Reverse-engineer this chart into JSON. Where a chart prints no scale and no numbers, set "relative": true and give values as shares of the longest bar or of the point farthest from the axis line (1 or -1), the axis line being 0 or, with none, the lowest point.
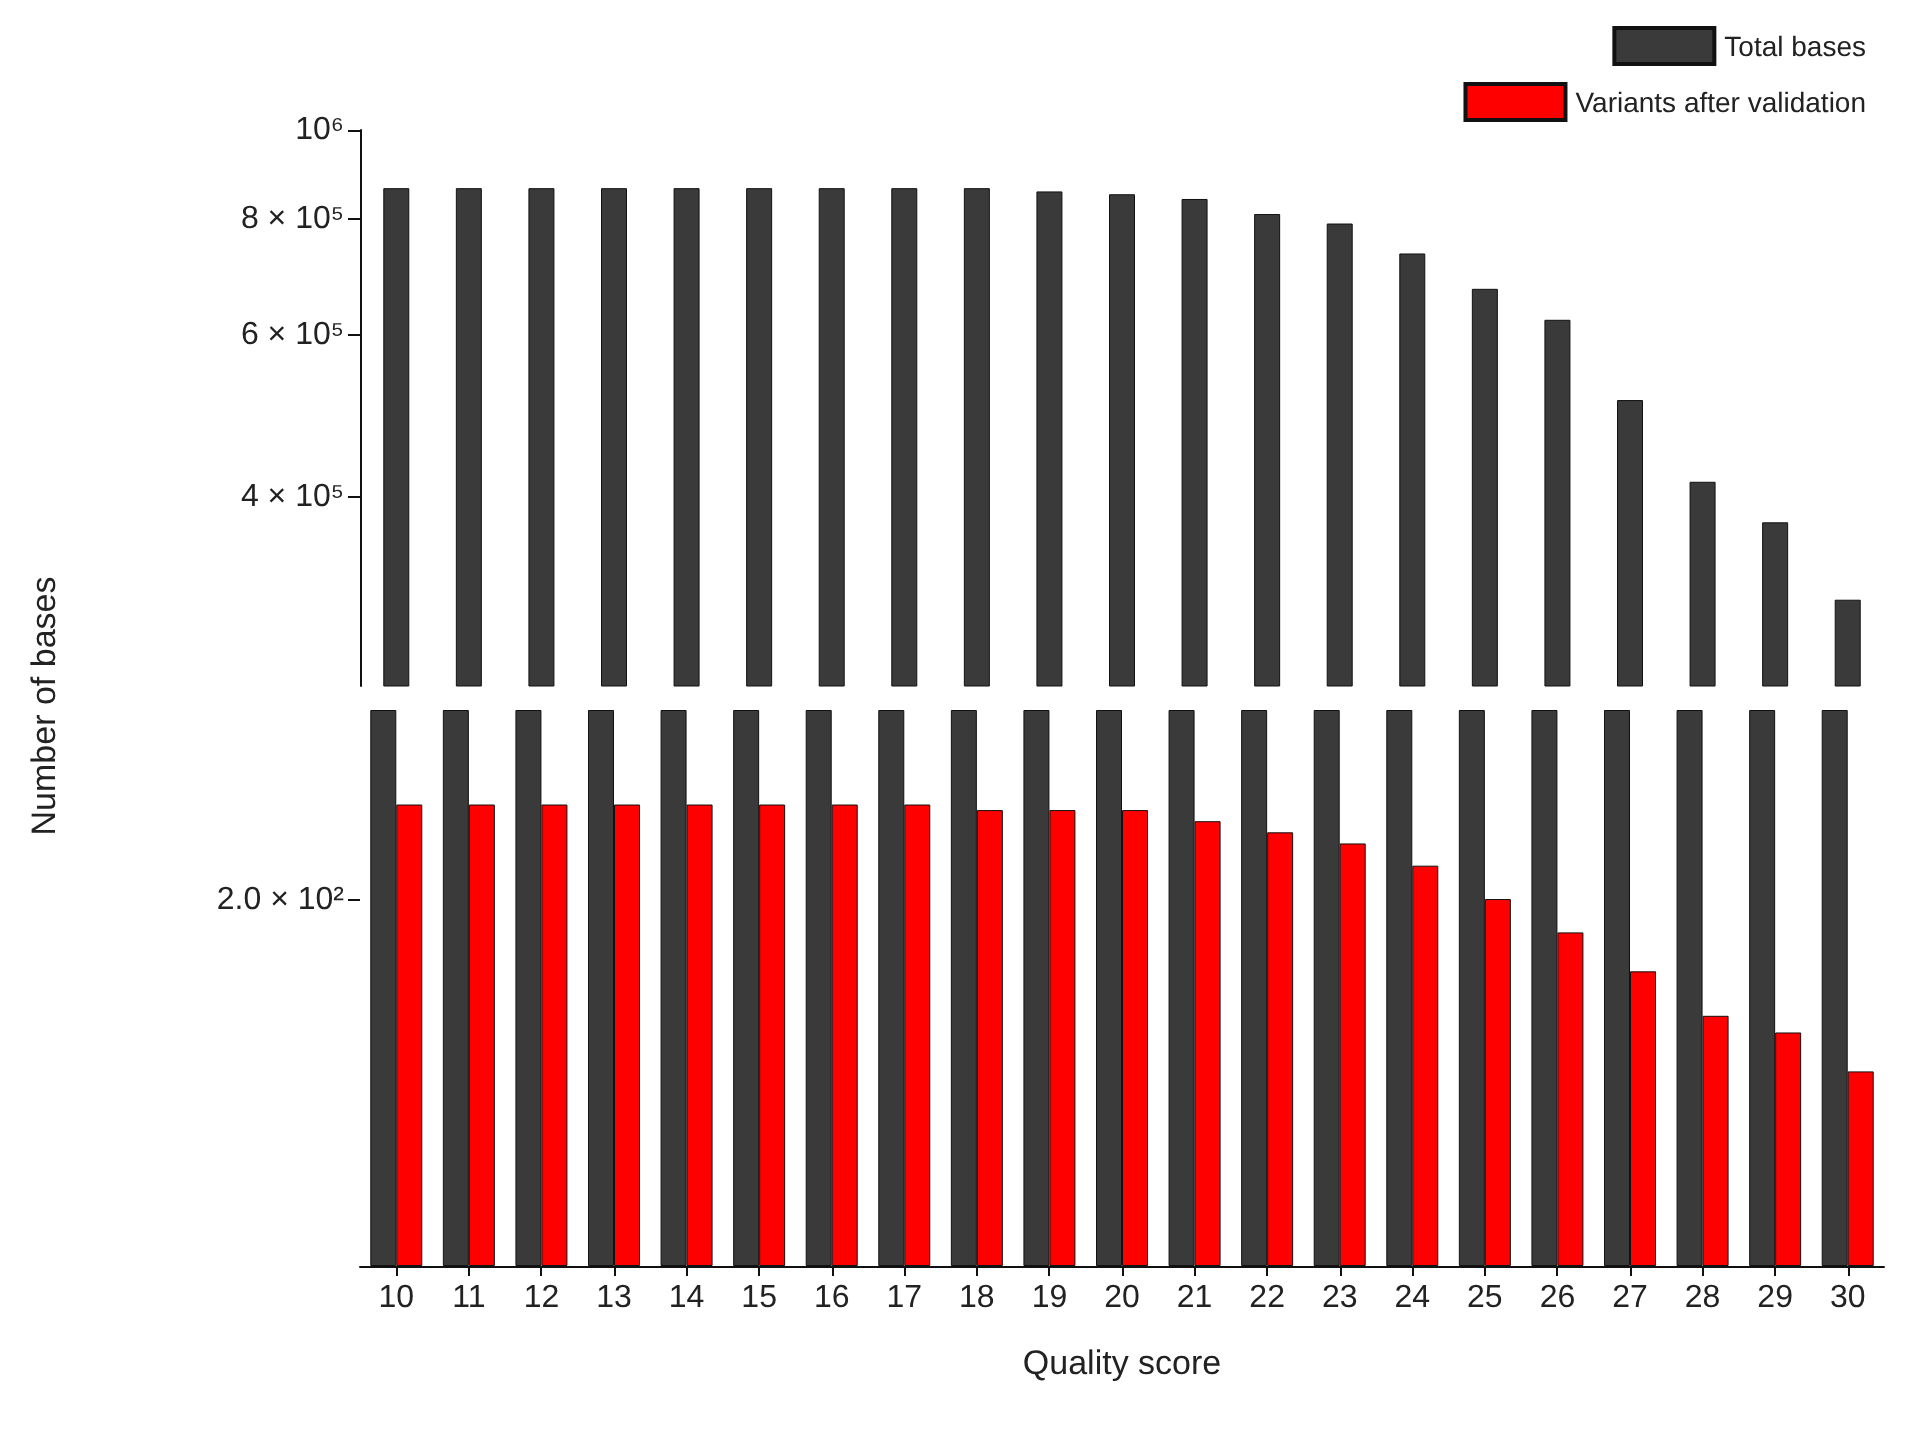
{
  "chart_data": [
    {
      "type": "bar",
      "categories": [
        "10",
        "11",
        "12",
        "13",
        "14",
        "15",
        "16",
        "17",
        "18",
        "19",
        "20",
        "21",
        "22",
        "23",
        "24",
        "25",
        "26",
        "27",
        "28",
        "29",
        "30"
      ],
      "series": [
        {
          "name": "Total bases",
          "color": "#3a3a3a",
          "values": [
            865000,
            865000,
            865000,
            865000,
            865000,
            865000,
            865000,
            865000,
            865000,
            858000,
            852000,
            842000,
            811000,
            792000,
            735000,
            673000,
            623000,
            510000,
            416000,
            376000,
            310000
          ]
        }
      ],
      "log": true,
      "ylim": [
        250000,
        1000000
      ],
      "yticks": [
        {
          "value": 400000,
          "label": "4 × 10⁵"
        },
        {
          "value": 600000,
          "label": "6 × 10⁵"
        },
        {
          "value": 800000,
          "label": "8 × 10⁵"
        },
        {
          "value": 1000000,
          "label": "10⁶"
        }
      ],
      "tick_labels": "y",
      "legend": "top right",
      "grid": false
    },
    {
      "type": "bar",
      "ylabel": "Number of bases",
      "xlabel": "Quality score",
      "categories": [
        "10",
        "11",
        "12",
        "13",
        "14",
        "15",
        "16",
        "17",
        "18",
        "19",
        "20",
        "21",
        "22",
        "23",
        "24",
        "25",
        "26",
        "27",
        "28",
        "29",
        "30"
      ],
      "relative": true,
      "series": [
        {
          "color": "#3a3a3a",
          "values": [
            1,
            1,
            1,
            1,
            1,
            1,
            1,
            1,
            1,
            1,
            1,
            1,
            1,
            1,
            1,
            1,
            1,
            1,
            1,
            1,
            1
          ]
        },
        {
          "name": "Variants after validation",
          "color": "#ff0000",
          "values": [
            0.83,
            0.83,
            0.83,
            0.83,
            0.83,
            0.83,
            0.83,
            0.83,
            0.82,
            0.82,
            0.82,
            0.8,
            0.78,
            0.76,
            0.72,
            0.66,
            0.6,
            0.53,
            0.45,
            0.42,
            0.35
          ]
        }
      ],
      "annotations": [
        "2.0 × 10²"
      ],
      "tick_labels": "x",
      "legend": "top right",
      "grid": false
    }
  ]
}
